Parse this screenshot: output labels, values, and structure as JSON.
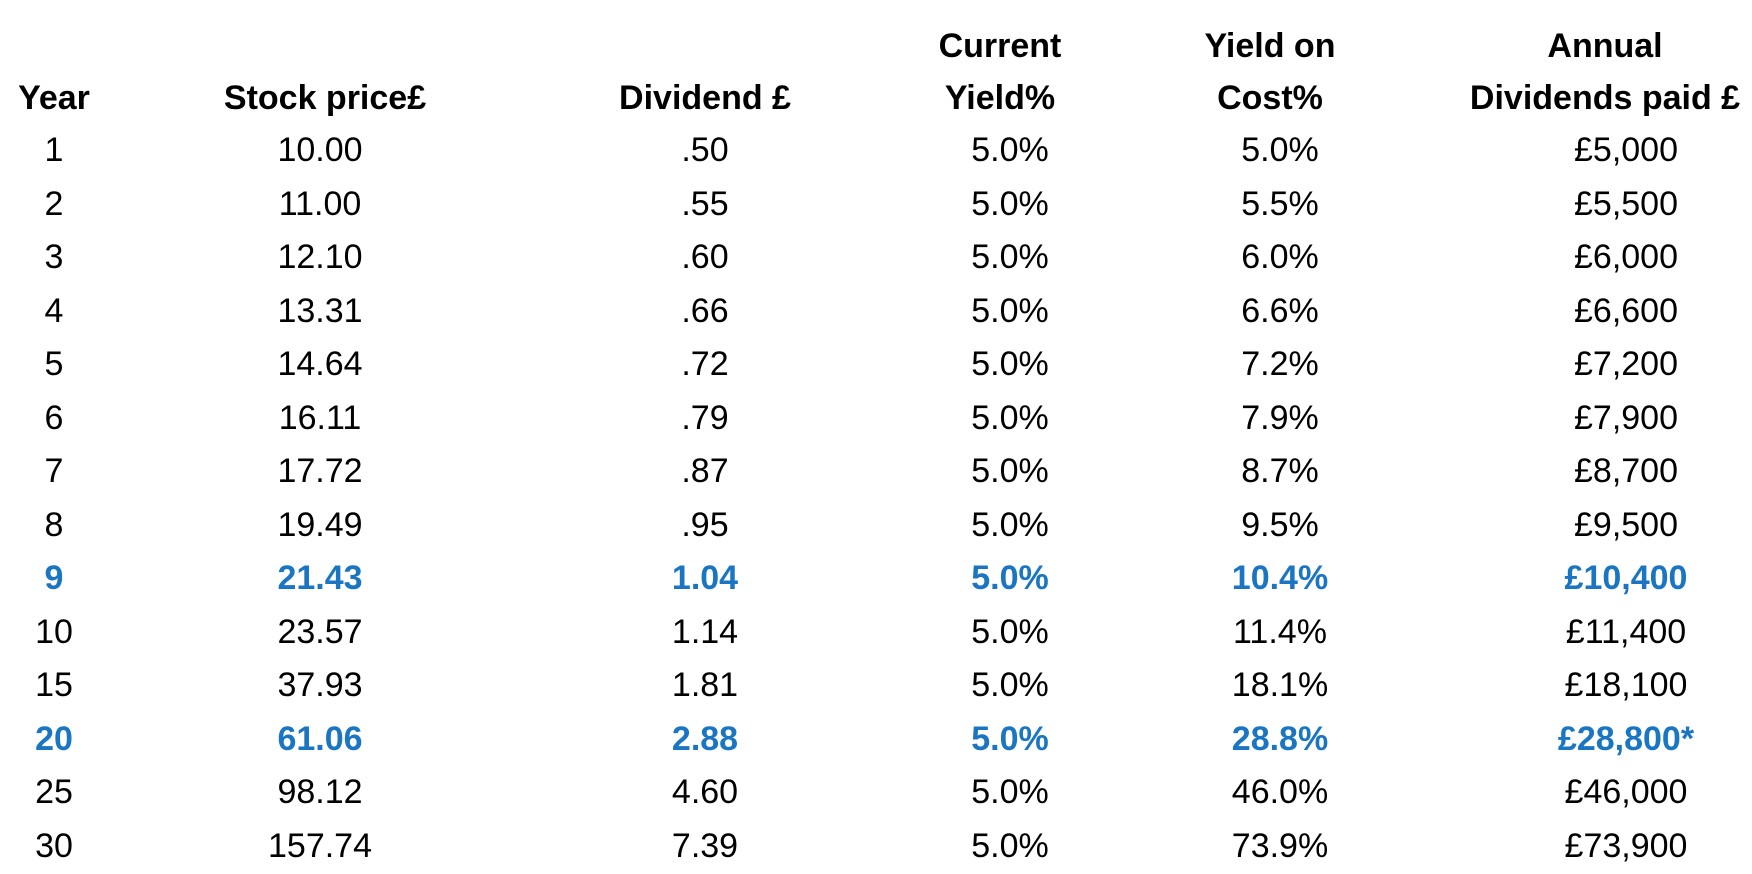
{
  "headers": {
    "year": "Year",
    "stock_price": "Stock price£",
    "dividend": "Dividend £",
    "current_yield_line1": "Current",
    "current_yield_line2": "Yield%",
    "yield_on_cost_line1": "Yield on",
    "yield_on_cost_line2": "Cost%",
    "annual_dividends_line1": "Annual",
    "annual_dividends_line2": "Dividends paid £"
  },
  "colors": {
    "highlight": "#1a75c2",
    "text": "#000000",
    "background": "#ffffff"
  },
  "rows": [
    {
      "year": "1",
      "price": "10.00",
      "dividend": ".50",
      "current_yield": "5.0%",
      "yield_on_cost": "5.0%",
      "annual": "£5,000",
      "highlight": false
    },
    {
      "year": "2",
      "price": "11.00",
      "dividend": ".55",
      "current_yield": "5.0%",
      "yield_on_cost": "5.5%",
      "annual": "£5,500",
      "highlight": false
    },
    {
      "year": "3",
      "price": "12.10",
      "dividend": ".60",
      "current_yield": "5.0%",
      "yield_on_cost": "6.0%",
      "annual": "£6,000",
      "highlight": false
    },
    {
      "year": "4",
      "price": "13.31",
      "dividend": ".66",
      "current_yield": "5.0%",
      "yield_on_cost": "6.6%",
      "annual": "£6,600",
      "highlight": false
    },
    {
      "year": "5",
      "price": "14.64",
      "dividend": ".72",
      "current_yield": "5.0%",
      "yield_on_cost": "7.2%",
      "annual": "£7,200",
      "highlight": false
    },
    {
      "year": "6",
      "price": "16.11",
      "dividend": ".79",
      "current_yield": "5.0%",
      "yield_on_cost": "7.9%",
      "annual": "£7,900",
      "highlight": false
    },
    {
      "year": "7",
      "price": "17.72",
      "dividend": ".87",
      "current_yield": "5.0%",
      "yield_on_cost": "8.7%",
      "annual": "£8,700",
      "highlight": false
    },
    {
      "year": "8",
      "price": "19.49",
      "dividend": ".95",
      "current_yield": "5.0%",
      "yield_on_cost": "9.5%",
      "annual": "£9,500",
      "highlight": false
    },
    {
      "year": "9",
      "price": "21.43",
      "dividend": "1.04",
      "current_yield": "5.0%",
      "yield_on_cost": "10.4%",
      "annual": "£10,400",
      "highlight": true
    },
    {
      "year": "10",
      "price": "23.57",
      "dividend": "1.14",
      "current_yield": "5.0%",
      "yield_on_cost": "11.4%",
      "annual": "£11,400",
      "highlight": false
    },
    {
      "year": "15",
      "price": "37.93",
      "dividend": "1.81",
      "current_yield": "5.0%",
      "yield_on_cost": "18.1%",
      "annual": "£18,100",
      "highlight": false
    },
    {
      "year": "20",
      "price": "61.06",
      "dividend": "2.88",
      "current_yield": "5.0%",
      "yield_on_cost": "28.8%",
      "annual": "£28,800*",
      "highlight": true
    },
    {
      "year": "25",
      "price": "98.12",
      "dividend": "4.60",
      "current_yield": "5.0%",
      "yield_on_cost": "46.0%",
      "annual": "£46,000",
      "highlight": false
    },
    {
      "year": "30",
      "price": "157.74",
      "dividend": "7.39",
      "current_yield": "5.0%",
      "yield_on_cost": "73.9%",
      "annual": "£73,900",
      "highlight": false
    }
  ]
}
